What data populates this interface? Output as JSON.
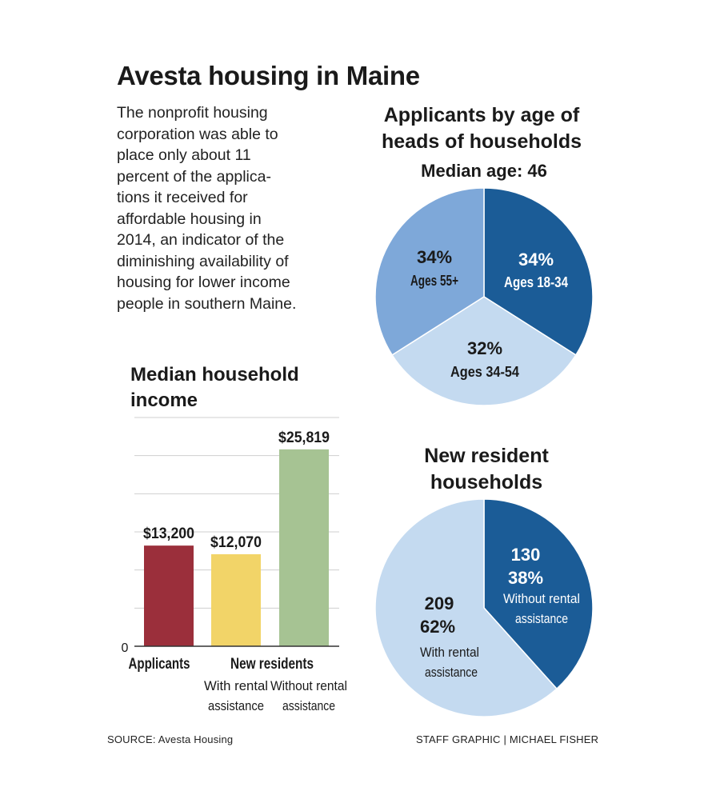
{
  "title": "Avesta housing in Maine",
  "intro_lines": [
    "The nonprofit housing",
    "corporation was able to",
    "place only about 11",
    "percent of the applica-",
    "tions it received for",
    "affordable housing in",
    "2014, an indicator of the",
    "diminishing availability of",
    "housing for lower income",
    "people in southern Maine."
  ],
  "source": "SOURCE: Avesta Housing",
  "staff_credit": "STAFF GRAPHIC | MICHAEL FISHER",
  "chart_data": [
    {
      "type": "bar",
      "title": "Median household income",
      "title_lines": [
        "Median household",
        "income"
      ],
      "categories": [
        "Applicants",
        "New residents – With rental assistance",
        "New residents – Without rental assistance"
      ],
      "values": [
        13200,
        12070,
        25819
      ],
      "data_labels": [
        "$13,200",
        "$12,070",
        "$25,819"
      ],
      "colors": [
        "#9b2f3b",
        "#f2d468",
        "#a6c393"
      ],
      "ylim": [
        0,
        30000
      ],
      "zero_label": "0",
      "grid": true,
      "axis_labels": {
        "applicants": "Applicants",
        "new_residents": "New residents",
        "with_lines": [
          "With rental",
          "assistance"
        ],
        "without_lines": [
          "Without rental",
          "assistance"
        ]
      }
    },
    {
      "type": "pie",
      "title": "Applicants by age of heads of households",
      "title_lines": [
        "Applicants by age of",
        "heads of households"
      ],
      "subtitle": "Median age: 46",
      "slices": [
        {
          "name": "Ages 18-34",
          "value": 34,
          "pct_label": "34%",
          "color": "#1b5c97"
        },
        {
          "name": "Ages 34-54",
          "value": 32,
          "pct_label": "32%",
          "color": "#c4daf0"
        },
        {
          "name": "Ages 55+",
          "value": 34,
          "pct_label": "34%",
          "color": "#7ea8d9"
        }
      ]
    },
    {
      "type": "pie",
      "title": "New resident households",
      "title_lines": [
        "New resident",
        "households"
      ],
      "slices": [
        {
          "name": "Without rental assistance",
          "label_lines": [
            "Without rental",
            "assistance"
          ],
          "value": 130,
          "count_label": "130",
          "pct_label": "38%",
          "color": "#1b5c97"
        },
        {
          "name": "With rental assistance",
          "label_lines": [
            "With rental",
            "assistance"
          ],
          "value": 209,
          "count_label": "209",
          "pct_label": "62%",
          "color": "#c4daf0"
        }
      ]
    }
  ]
}
